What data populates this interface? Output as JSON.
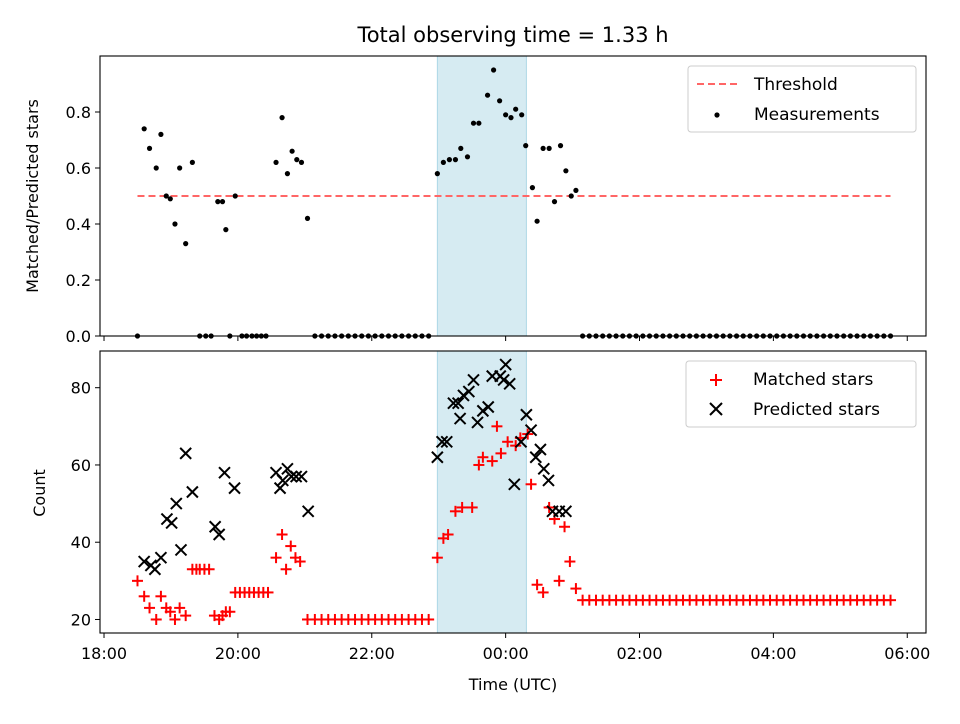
{
  "title": "Total observing time = 1.33 h",
  "colors": {
    "threshold": "#ff6666",
    "measurement": "#000000",
    "matched": "#ff0000",
    "predicted": "#000000",
    "highlight": "#add8e6"
  },
  "chart_data": [
    {
      "type": "scatter",
      "ylabel": "Matched/Predicted stars",
      "xlabel": "",
      "xlim_h": [
        17.94,
        30.28
      ],
      "ylim": [
        0,
        1.0
      ],
      "yticks": [
        0.0,
        0.2,
        0.4,
        0.6,
        0.8
      ],
      "ytick_labels": [
        "0.0",
        "0.2",
        "0.4",
        "0.6",
        "0.8"
      ],
      "highlight_span_h": [
        22.98,
        24.31
      ],
      "legend": {
        "position": "upper right",
        "entries": [
          "Threshold",
          "Measurements"
        ]
      },
      "threshold": {
        "name": "Threshold",
        "y": 0.5,
        "x_range_h": [
          18.5,
          29.75
        ]
      },
      "series": [
        {
          "name": "Measurements",
          "x_h": [
            18.5,
            18.6,
            18.68,
            18.78,
            18.85,
            18.93,
            18.99,
            19.06,
            19.13,
            19.22,
            19.32,
            19.43,
            19.52,
            19.6,
            19.7,
            19.77,
            19.82,
            19.88,
            19.96,
            20.06,
            20.13,
            20.21,
            20.28,
            20.35,
            20.42,
            20.57,
            20.66,
            20.74,
            20.81,
            20.88,
            20.95,
            21.04,
            21.15,
            21.25,
            21.35,
            21.45,
            21.55,
            21.65,
            21.75,
            21.85,
            21.95,
            22.05,
            22.15,
            22.25,
            22.35,
            22.45,
            22.55,
            22.65,
            22.75,
            22.85,
            22.98,
            23.07,
            23.16,
            23.25,
            23.33,
            23.43,
            23.52,
            23.6,
            23.73,
            23.82,
            23.91,
            24.0,
            24.08,
            24.15,
            24.24,
            24.3,
            24.4,
            24.47,
            24.56,
            24.65,
            24.73,
            24.82,
            24.9,
            24.98,
            25.05,
            25.15,
            25.25,
            25.35,
            25.45,
            25.55,
            25.65,
            25.75,
            25.85,
            25.95,
            26.05,
            26.15,
            26.25,
            26.35,
            26.45,
            26.55,
            26.65,
            26.75,
            26.85,
            26.95,
            27.05,
            27.15,
            27.25,
            27.35,
            27.45,
            27.55,
            27.65,
            27.75,
            27.85,
            27.95,
            28.05,
            28.15,
            28.25,
            28.35,
            28.45,
            28.55,
            28.65,
            28.75,
            28.85,
            28.95,
            29.05,
            29.15,
            29.25,
            29.35,
            29.45,
            29.55,
            29.65,
            29.75
          ],
          "y": [
            0.0,
            0.74,
            0.67,
            0.6,
            0.72,
            0.5,
            0.49,
            0.4,
            0.6,
            0.33,
            0.62,
            0.0,
            0.0,
            0.0,
            0.48,
            0.48,
            0.38,
            0.0,
            0.5,
            0.0,
            0.0,
            0.0,
            0.0,
            0.0,
            0.0,
            0.62,
            0.78,
            0.58,
            0.66,
            0.63,
            0.62,
            0.42,
            0.0,
            0.0,
            0.0,
            0.0,
            0.0,
            0.0,
            0.0,
            0.0,
            0.0,
            0.0,
            0.0,
            0.0,
            0.0,
            0.0,
            0.0,
            0.0,
            0.0,
            0.0,
            0.58,
            0.62,
            0.63,
            0.63,
            0.67,
            0.64,
            0.76,
            0.76,
            0.86,
            0.95,
            0.84,
            0.79,
            0.78,
            0.81,
            0.79,
            0.68,
            0.53,
            0.41,
            0.67,
            0.67,
            0.48,
            0.68,
            0.59,
            0.5,
            0.52,
            0.0,
            0.0,
            0.0,
            0.0,
            0.0,
            0.0,
            0.0,
            0.0,
            0.0,
            0.0,
            0.0,
            0.0,
            0.0,
            0.0,
            0.0,
            0.0,
            0.0,
            0.0,
            0.0,
            0.0,
            0.0,
            0.0,
            0.0,
            0.0,
            0.0,
            0.0,
            0.0,
            0.0,
            0.0,
            0.0,
            0.0,
            0.0,
            0.0,
            0.0,
            0.0,
            0.0,
            0.0,
            0.0,
            0.0,
            0.0,
            0.0,
            0.0,
            0.0,
            0.0,
            0.0,
            0.0,
            0.0
          ]
        }
      ]
    },
    {
      "type": "scatter",
      "ylabel": "Count",
      "xlabel": "Time (UTC)",
      "xlim_h": [
        17.94,
        30.28
      ],
      "ylim": [
        16.5,
        89.5
      ],
      "yticks": [
        20,
        40,
        60,
        80
      ],
      "ytick_labels": [
        "20",
        "40",
        "60",
        "80"
      ],
      "xticks_h": [
        18,
        20,
        22,
        24,
        26,
        28,
        30
      ],
      "xtick_labels": [
        "18:00",
        "20:00",
        "22:00",
        "00:00",
        "02:00",
        "04:00",
        "06:00"
      ],
      "highlight_span_h": [
        22.98,
        24.31
      ],
      "legend": {
        "position": "upper right",
        "entries": [
          "Matched stars",
          "Predicted stars"
        ]
      },
      "series": [
        {
          "name": "Matched stars",
          "marker": "plus",
          "x_h": [
            18.5,
            18.6,
            18.68,
            18.78,
            18.85,
            18.93,
            18.99,
            19.06,
            19.13,
            19.22,
            19.32,
            19.38,
            19.43,
            19.5,
            19.57,
            19.65,
            19.72,
            19.77,
            19.82,
            19.88,
            19.96,
            20.03,
            20.1,
            20.17,
            20.24,
            20.31,
            20.38,
            20.45,
            20.57,
            20.66,
            20.72,
            20.79,
            20.86,
            20.93,
            21.04,
            21.15,
            21.25,
            21.35,
            21.45,
            21.55,
            21.65,
            21.75,
            21.85,
            21.95,
            22.05,
            22.15,
            22.25,
            22.35,
            22.45,
            22.55,
            22.65,
            22.75,
            22.85,
            22.98,
            23.07,
            23.14,
            23.25,
            23.35,
            23.5,
            23.6,
            23.66,
            23.8,
            23.87,
            23.93,
            24.03,
            24.15,
            24.22,
            24.33,
            24.38,
            24.47,
            24.56,
            24.65,
            24.73,
            24.8,
            24.88,
            24.96,
            25.05,
            25.15,
            25.25,
            25.35,
            25.45,
            25.55,
            25.65,
            25.75,
            25.85,
            25.95,
            26.05,
            26.15,
            26.25,
            26.35,
            26.45,
            26.55,
            26.65,
            26.75,
            26.85,
            26.95,
            27.05,
            27.15,
            27.25,
            27.35,
            27.45,
            27.55,
            27.65,
            27.75,
            27.85,
            27.95,
            28.05,
            28.15,
            28.25,
            28.35,
            28.45,
            28.55,
            28.65,
            28.75,
            28.85,
            28.95,
            29.05,
            29.15,
            29.25,
            29.35,
            29.45,
            29.55,
            29.65,
            29.75
          ],
          "y": [
            30,
            26,
            23,
            20,
            26,
            23,
            22,
            20,
            23,
            21,
            33,
            33,
            33,
            33,
            33,
            21,
            20,
            21,
            22,
            22,
            27,
            27,
            27,
            27,
            27,
            27,
            27,
            27,
            36,
            42,
            33,
            39,
            36,
            35,
            20,
            20,
            20,
            20,
            20,
            20,
            20,
            20,
            20,
            20,
            20,
            20,
            20,
            20,
            20,
            20,
            20,
            20,
            20,
            36,
            41,
            42,
            48,
            49,
            49,
            60,
            62,
            61,
            70,
            63,
            66,
            65,
            67,
            68,
            55,
            29,
            27,
            49,
            46,
            30,
            44,
            35,
            28,
            25,
            25,
            25,
            25,
            25,
            25,
            25,
            25,
            25,
            25,
            25,
            25,
            25,
            25,
            25,
            25,
            25,
            25,
            25,
            25,
            25,
            25,
            25,
            25,
            25,
            25,
            25,
            25,
            25,
            25,
            25,
            25,
            25,
            25,
            25,
            25,
            25,
            25,
            25,
            25,
            25,
            25,
            25,
            25,
            25,
            25,
            25
          ]
        },
        {
          "name": "Predicted stars",
          "marker": "x",
          "x_h": [
            18.6,
            18.7,
            18.76,
            18.85,
            18.94,
            19.01,
            19.08,
            19.15,
            19.22,
            19.32,
            19.66,
            19.72,
            19.8,
            19.95,
            20.57,
            20.63,
            20.67,
            20.74,
            20.8,
            20.87,
            20.95,
            21.05,
            22.98,
            23.05,
            23.12,
            23.22,
            23.29,
            23.32,
            23.37,
            23.45,
            23.52,
            23.58,
            23.66,
            23.74,
            23.8,
            23.92,
            23.97,
            24.0,
            24.06,
            24.13,
            24.23,
            24.31,
            24.38,
            24.45,
            24.52,
            24.57,
            24.64,
            24.7,
            24.8,
            24.9
          ],
          "y": [
            35,
            34,
            33,
            36,
            46,
            45,
            50,
            38,
            63,
            53,
            44,
            42,
            58,
            54,
            58,
            54,
            56,
            59,
            57,
            57,
            57,
            48,
            62,
            66,
            66,
            76,
            76,
            72,
            78,
            79,
            82,
            71,
            74,
            75,
            83,
            83,
            82,
            86,
            81,
            55,
            66,
            73,
            69,
            62,
            64,
            59,
            56,
            48,
            48,
            48
          ]
        }
      ]
    }
  ]
}
